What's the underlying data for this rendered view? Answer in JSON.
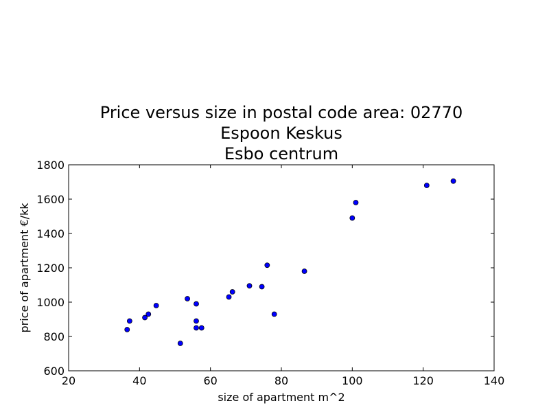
{
  "chart_data": {
    "type": "scatter",
    "title_lines": [
      "Price versus size in postal code area: 02770",
      "Espoon Keskus",
      "Esbo centrum"
    ],
    "xlabel": "size of apartment m^2",
    "ylabel": "price of apartment €/kk",
    "xlim": [
      20,
      140
    ],
    "ylim": [
      600,
      1800
    ],
    "xticks": [
      20,
      40,
      60,
      80,
      100,
      120,
      140
    ],
    "yticks": [
      600,
      800,
      1000,
      1200,
      1400,
      1600,
      1800
    ],
    "grid": false,
    "marker_color": "#0000ff",
    "points": [
      {
        "x": 36.5,
        "y": 840
      },
      {
        "x": 37.2,
        "y": 890
      },
      {
        "x": 41.5,
        "y": 910
      },
      {
        "x": 42.5,
        "y": 930
      },
      {
        "x": 44.7,
        "y": 980
      },
      {
        "x": 51.5,
        "y": 760
      },
      {
        "x": 53.5,
        "y": 1020
      },
      {
        "x": 56.0,
        "y": 990
      },
      {
        "x": 56.0,
        "y": 890
      },
      {
        "x": 56.0,
        "y": 850
      },
      {
        "x": 57.5,
        "y": 850
      },
      {
        "x": 65.2,
        "y": 1030
      },
      {
        "x": 66.2,
        "y": 1060
      },
      {
        "x": 71.0,
        "y": 1095
      },
      {
        "x": 74.5,
        "y": 1090
      },
      {
        "x": 76.0,
        "y": 1215
      },
      {
        "x": 78.0,
        "y": 930
      },
      {
        "x": 86.5,
        "y": 1180
      },
      {
        "x": 100.0,
        "y": 1490
      },
      {
        "x": 101.0,
        "y": 1580
      },
      {
        "x": 121.0,
        "y": 1680
      },
      {
        "x": 128.5,
        "y": 1705
      }
    ]
  }
}
